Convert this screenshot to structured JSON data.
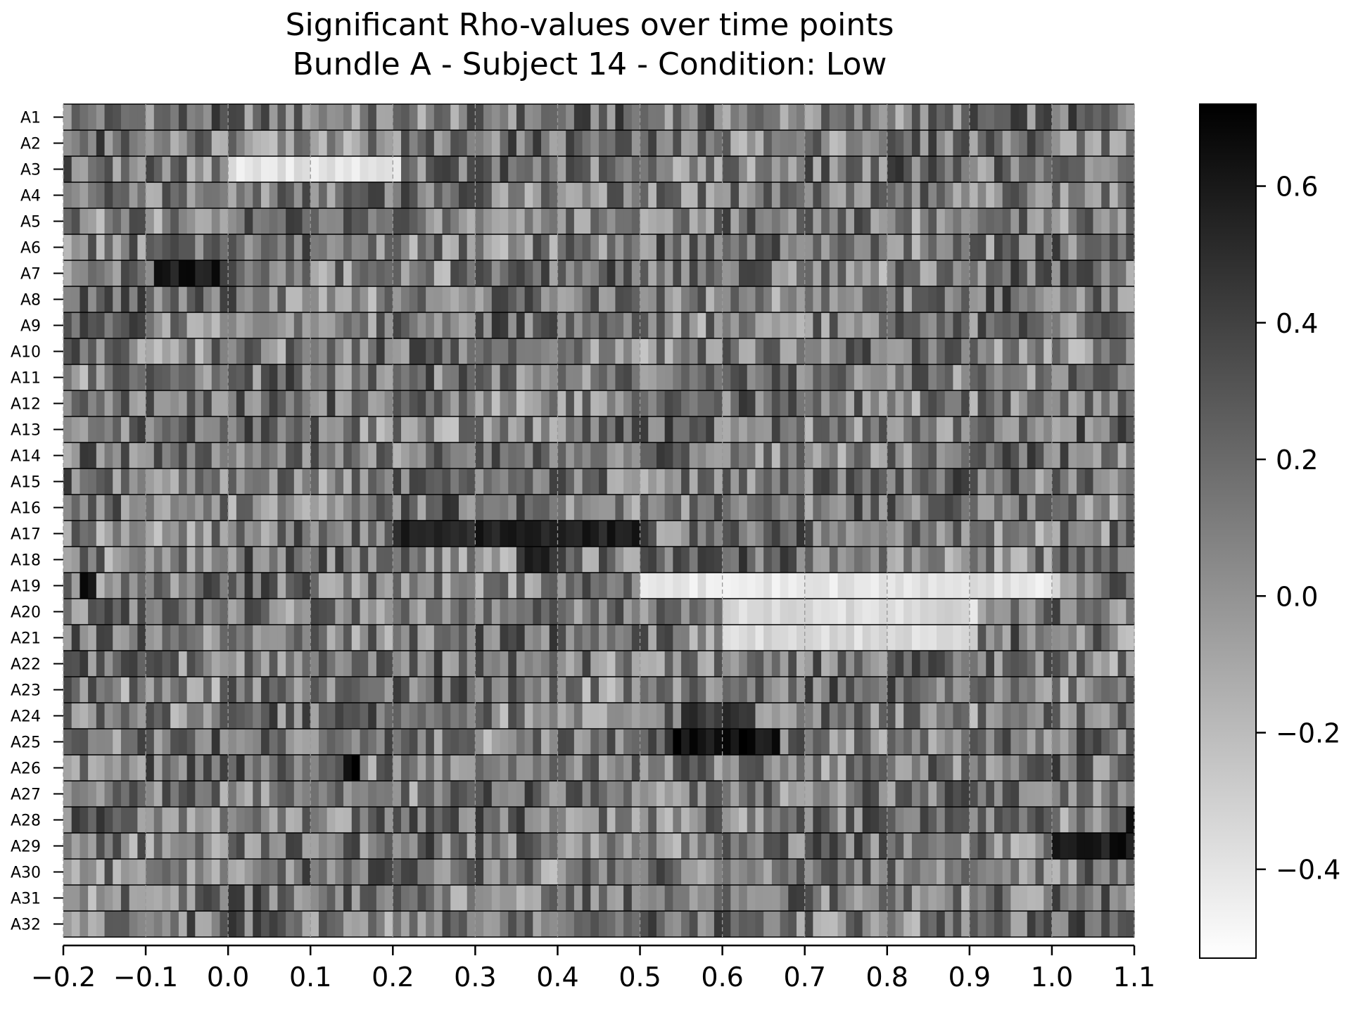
{
  "chart_data": {
    "type": "heatmap",
    "title_lines": [
      "Significant Rho-values over time points",
      "Bundle A - Subject 14 - Condition: Low"
    ],
    "xlabel": "",
    "ylabel": "",
    "xlim": [
      -0.2,
      1.1
    ],
    "x_tick_values": [
      -0.2,
      -0.1,
      0.0,
      0.1,
      0.2,
      0.3,
      0.4,
      0.5,
      0.6,
      0.7,
      0.8,
      0.9,
      1.0,
      1.1
    ],
    "x_tick_labels": [
      "−0.2",
      "−0.1",
      "0.0",
      "0.1",
      "0.2",
      "0.3",
      "0.4",
      "0.5",
      "0.6",
      "0.7",
      "0.8",
      "0.9",
      "1.0",
      "1.1"
    ],
    "rows": [
      "A1",
      "A2",
      "A3",
      "A4",
      "A5",
      "A6",
      "A7",
      "A8",
      "A9",
      "A10",
      "A11",
      "A12",
      "A13",
      "A14",
      "A15",
      "A16",
      "A17",
      "A18",
      "A19",
      "A20",
      "A21",
      "A22",
      "A23",
      "A24",
      "A25",
      "A26",
      "A27",
      "A28",
      "A29",
      "A30",
      "A31",
      "A32"
    ],
    "grid": true,
    "colormap": "Greys",
    "colorbar": {
      "range": [
        -0.53,
        0.72
      ],
      "tick_values": [
        -0.4,
        -0.2,
        0.0,
        0.2,
        0.4,
        0.6
      ],
      "tick_labels": [
        "−0.4",
        "−0.2",
        "0.0",
        "0.2",
        "0.4",
        "0.6"
      ],
      "placement": "right"
    },
    "time_step": 0.01,
    "highlights": [
      {
        "row": "A7",
        "x_range": [
          -0.09,
          -0.02
        ],
        "value": 0.6
      },
      {
        "row": "A17",
        "x_range": [
          0.2,
          0.5
        ],
        "value": 0.55
      },
      {
        "row": "A18",
        "x_range": [
          0.35,
          0.4
        ],
        "value": 0.5
      },
      {
        "row": "A19",
        "x_range": [
          -0.18,
          -0.17
        ],
        "value": 0.7
      },
      {
        "row": "A24",
        "x_range": [
          0.55,
          0.63
        ],
        "value": 0.45
      },
      {
        "row": "A25",
        "x_range": [
          0.54,
          0.66
        ],
        "value": 0.65
      },
      {
        "row": "A26",
        "x_range": [
          0.14,
          0.15
        ],
        "value": 0.7
      },
      {
        "row": "A29",
        "x_range": [
          1.0,
          1.1
        ],
        "value": 0.6
      },
      {
        "row": "A28",
        "x_range": [
          1.09,
          1.1
        ],
        "value": 0.6
      }
    ],
    "low_regions": [
      {
        "row": "A3",
        "x_range": [
          0.0,
          0.2
        ],
        "value": -0.4
      },
      {
        "row": "A19",
        "x_range": [
          0.5,
          1.0
        ],
        "value": -0.4
      },
      {
        "row": "A20",
        "x_range": [
          0.6,
          0.9
        ],
        "value": -0.35
      },
      {
        "row": "A21",
        "x_range": [
          0.6,
          0.9
        ],
        "value": -0.35
      }
    ]
  },
  "colors": {
    "background": "#ffffff",
    "row_separator": "#000000",
    "grid": "#9a9a9a"
  }
}
